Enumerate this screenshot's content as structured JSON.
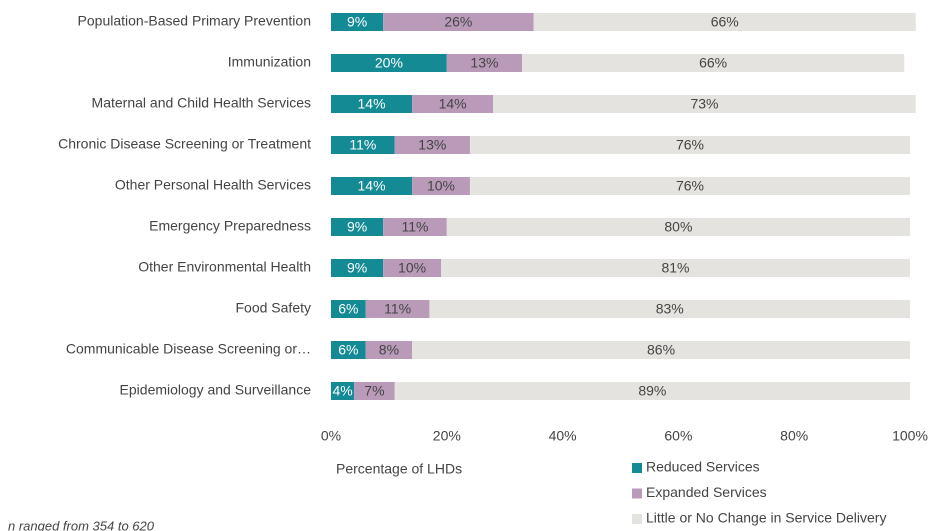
{
  "chart_data": {
    "type": "stacked-barh",
    "categories": [
      "Population-Based Primary Prevention",
      "Immunization",
      "Maternal and Child Health Services",
      "Chronic Disease Screening or Treatment",
      "Other Personal Health Services",
      "Emergency Preparedness",
      "Other Environmental Health",
      "Food Safety",
      "Communicable Disease Screening or…",
      "Epidemiology and Surveillance"
    ],
    "series": [
      {
        "name": "Reduced Services",
        "color": "#138a94",
        "values": [
          9,
          20,
          14,
          11,
          14,
          9,
          9,
          6,
          6,
          4
        ],
        "value_labels": [
          "9%",
          "20%",
          "14%",
          "11%",
          "14%",
          "9%",
          "9%",
          "6%",
          "6%",
          "4%"
        ]
      },
      {
        "name": "Expanded Services",
        "color": "#b99bb9",
        "values": [
          26,
          13,
          14,
          13,
          10,
          11,
          10,
          11,
          8,
          7
        ],
        "value_labels": [
          "26%",
          "13%",
          "14%",
          "13%",
          "10%",
          "11%",
          "10%",
          "11%",
          "8%",
          "7%"
        ]
      },
      {
        "name": "Little or No Change in Service Delivery",
        "color": "#e5e3df",
        "values": [
          66,
          66,
          73,
          76,
          76,
          80,
          81,
          83,
          86,
          89
        ],
        "value_labels": [
          "66%",
          "66%",
          "73%",
          "76%",
          "76%",
          "80%",
          "81%",
          "83%",
          "86%",
          "89%"
        ]
      }
    ],
    "xlim": [
      0,
      100
    ],
    "xticks": [
      {
        "value": 0,
        "label": "0%"
      },
      {
        "value": 20,
        "label": "20%"
      },
      {
        "value": 40,
        "label": "40%"
      },
      {
        "value": 60,
        "label": "60%"
      },
      {
        "value": 80,
        "label": "80%"
      },
      {
        "value": 100,
        "label": "100%"
      }
    ],
    "xlabel": "Percentage of LHDs",
    "note": "n ranged from 354 to 620"
  }
}
